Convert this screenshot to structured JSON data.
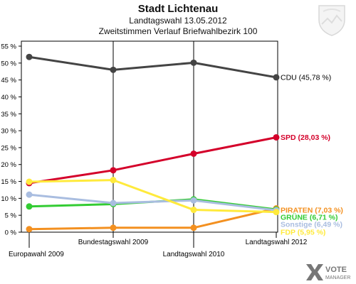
{
  "header": {
    "title": "Stadt Lichtenau",
    "subtitle1": "Landtagswahl 13.05.2012",
    "subtitle2": "Zweitstimmen Verlauf Briefwahlbezirk 100"
  },
  "logo": {
    "text_top": "VOTE",
    "text_bottom": "MANAGER"
  },
  "chart_data": {
    "type": "line",
    "title": "Stadt Lichtenau",
    "subtitle": "Landtagswahl 13.05.2012 - Zweitstimmen Verlauf Briefwahlbezirk 100",
    "categories": [
      "Europawahl 2009",
      "Bundestagswahl 2009",
      "Landtagswahl 2010",
      "Landtagswahl 2012"
    ],
    "ylim": [
      0,
      55
    ],
    "yticks": [
      0,
      5,
      10,
      15,
      20,
      25,
      30,
      35,
      40,
      45,
      50,
      55
    ],
    "ytick_labels": [
      "0 %",
      "5 %",
      "10 %",
      "15 %",
      "20 %",
      "25 %",
      "30 %",
      "35 %",
      "40 %",
      "45 %",
      "50 %",
      "55 %"
    ],
    "grid": false,
    "series": [
      {
        "name": "CDU",
        "label": "CDU (45,78 %)",
        "color": "#444444",
        "values": [
          51.8,
          48.0,
          50.1,
          45.78
        ]
      },
      {
        "name": "SPD",
        "label": "SPD (28,03 %)",
        "color": "#d4002a",
        "values": [
          14.5,
          18.3,
          23.2,
          28.03
        ]
      },
      {
        "name": "PIRATEN",
        "label": "PIRATEN (7,03 %)",
        "color": "#f39020",
        "values": [
          0.9,
          1.3,
          1.3,
          7.03
        ]
      },
      {
        "name": "GRÜNE",
        "label": "GRÜNE (6,71 %)",
        "color": "#33cc33",
        "values": [
          7.6,
          8.3,
          9.7,
          6.71
        ]
      },
      {
        "name": "Sonstige",
        "label": "Sonstige (6,49 %)",
        "color": "#a9bde0",
        "values": [
          11.1,
          8.6,
          9.4,
          6.49
        ]
      },
      {
        "name": "FDP",
        "label": "FDP (5,95 %)",
        "color": "#ffea3c",
        "values": [
          14.9,
          15.4,
          6.6,
          5.95
        ]
      }
    ]
  }
}
